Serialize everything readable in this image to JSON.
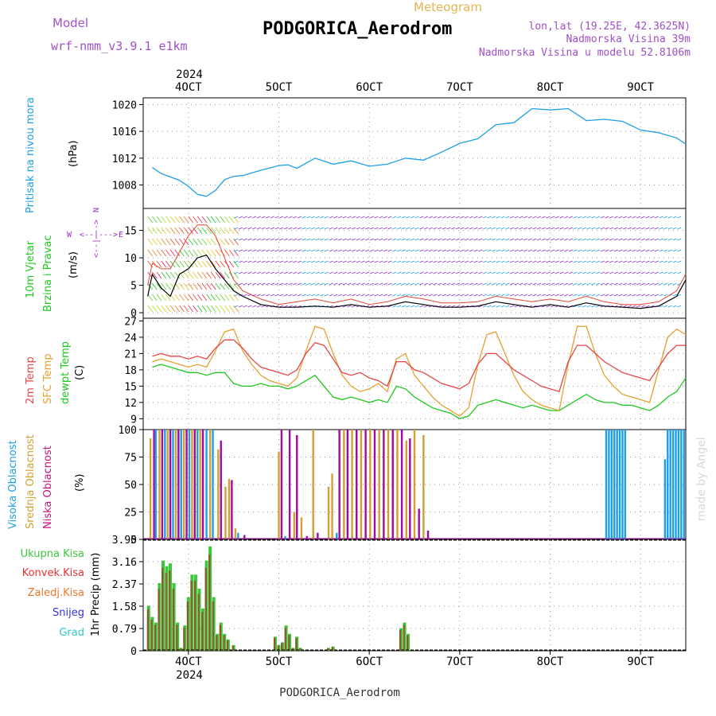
{
  "header": {
    "model_label": "Model",
    "model_name": "wrf-nmm_v3.9.1 e1km",
    "meteogram_label": "Meteogram",
    "station": "PODGORICA_Aerodrom",
    "coords": "lon,lat (19.25E, 42.3625N)",
    "altitude": "Nadmorska Visina 39m",
    "model_altitude": "Nadmorska Visina u modelu 52.8106m",
    "year": "2024",
    "footer_station": "PODGORICA_Aerodrom",
    "watermark": "made by Angel"
  },
  "colors": {
    "pressure": "#1ea0e6",
    "wind_speed": "#000000",
    "gust": "#e64632",
    "temp2m": "#e64646",
    "sfc_temp": "#e6a032",
    "dewpoint": "#1ec81e",
    "high_cloud": "#1ea0e6",
    "mid_cloud": "#d2a032",
    "low_cloud": "#a00aa0",
    "total_precip": "#3cc83c",
    "conv_precip": "#e63232",
    "snow": "#3232e6",
    "hail": "#32c8c8",
    "legend_wind": "#a032c8"
  },
  "chart_data": [
    {
      "type": "line",
      "title": "Pritisak na nivou mora",
      "ylabel": "(hPa)",
      "ylim": [
        1004.5,
        1021
      ],
      "yticks": [
        1008,
        1012,
        1016,
        1020
      ],
      "x_days": [
        3.6,
        3.7,
        3.8,
        3.9,
        4.0,
        4.1,
        4.2,
        4.3,
        4.4,
        4.5,
        4.6,
        4.8,
        5.0,
        5.1,
        5.2,
        5.4,
        5.6,
        5.8,
        6.0,
        6.2,
        6.4,
        6.6,
        6.8,
        7.0,
        7.2,
        7.4,
        7.6,
        7.8,
        8.0,
        8.2,
        8.4,
        8.6,
        8.8,
        9.0,
        9.2,
        9.4,
        9.5
      ],
      "series": [
        {
          "values": [
            1010.6,
            1009.7,
            1009.2,
            1008.7,
            1007.8,
            1006.6,
            1006.3,
            1007.2,
            1008.8,
            1009.3,
            1009.4,
            1010.2,
            1010.9,
            1011.0,
            1010.5,
            1012.0,
            1011.1,
            1011.6,
            1010.8,
            1011.1,
            1012.0,
            1011.7,
            1012.9,
            1014.2,
            1014.9,
            1017.0,
            1017.3,
            1019.4,
            1019.2,
            1019.4,
            1017.6,
            1017.8,
            1017.5,
            1016.2,
            1015.8,
            1015.0,
            1014.1
          ]
        }
      ]
    },
    {
      "type": "line",
      "title": "10m Vjetar Brzina i Pravac",
      "ylabel": "(m/s)",
      "ylim": [
        -1,
        19
      ],
      "yticks": [
        0,
        5,
        10,
        15
      ],
      "x_days": [
        3.55,
        3.6,
        3.7,
        3.8,
        3.9,
        4.0,
        4.1,
        4.2,
        4.3,
        4.4,
        4.5,
        4.6,
        4.8,
        5.0,
        5.2,
        5.4,
        5.6,
        5.8,
        6.0,
        6.2,
        6.4,
        6.6,
        6.8,
        7.0,
        7.2,
        7.4,
        7.6,
        7.8,
        8.0,
        8.2,
        8.4,
        8.6,
        8.8,
        9.0,
        9.2,
        9.4,
        9.5
      ],
      "series": [
        {
          "name": "speed",
          "values": [
            3.0,
            7.0,
            4.5,
            3.0,
            7.0,
            8.0,
            10.0,
            10.5,
            8.0,
            6.0,
            4.0,
            3.0,
            1.5,
            1.0,
            1.0,
            1.2,
            1.0,
            1.5,
            1.0,
            1.2,
            2.0,
            1.5,
            1.0,
            1.0,
            1.2,
            2.0,
            1.5,
            1.0,
            1.5,
            1.0,
            1.8,
            1.2,
            1.0,
            0.8,
            1.2,
            3.0,
            6.0
          ]
        },
        {
          "name": "gust",
          "values": [
            5.0,
            9.0,
            8.0,
            8.0,
            11.0,
            14.0,
            16.0,
            16.0,
            14.0,
            10.0,
            6.0,
            4.0,
            2.5,
            1.5,
            2.0,
            2.5,
            1.8,
            2.5,
            1.5,
            2.0,
            3.0,
            2.5,
            1.8,
            1.8,
            2.0,
            3.0,
            2.5,
            2.0,
            2.5,
            2.0,
            3.0,
            2.0,
            1.5,
            1.5,
            2.0,
            4.0,
            7.0
          ]
        }
      ]
    },
    {
      "type": "line",
      "ylabel": "(C)",
      "ylim": [
        7,
        27.5
      ],
      "yticks": [
        9,
        12,
        15,
        18,
        21,
        24,
        27
      ],
      "series_names": [
        "2m Temp",
        "SFC Temp",
        "dewpt Temp"
      ],
      "x_days": [
        3.6,
        3.7,
        3.8,
        3.9,
        4.0,
        4.1,
        4.2,
        4.3,
        4.4,
        4.5,
        4.6,
        4.7,
        4.8,
        4.9,
        5.0,
        5.1,
        5.2,
        5.3,
        5.4,
        5.5,
        5.6,
        5.7,
        5.8,
        5.9,
        6.0,
        6.1,
        6.2,
        6.3,
        6.4,
        6.5,
        6.6,
        6.7,
        6.8,
        6.9,
        7.0,
        7.1,
        7.2,
        7.3,
        7.4,
        7.5,
        7.6,
        7.7,
        7.8,
        7.9,
        8.0,
        8.1,
        8.2,
        8.3,
        8.4,
        8.5,
        8.6,
        8.7,
        8.8,
        8.9,
        9.0,
        9.1,
        9.2,
        9.3,
        9.4,
        9.5
      ],
      "series": [
        {
          "name": "2m Temp",
          "values": [
            20.5,
            21.0,
            20.5,
            20.5,
            20.0,
            20.5,
            20.0,
            22.0,
            23.5,
            23.5,
            22.0,
            20.0,
            18.5,
            18.0,
            17.5,
            17.0,
            18.0,
            21.0,
            23.0,
            22.5,
            20.0,
            17.5,
            17.0,
            17.5,
            16.5,
            16.0,
            15.0,
            19.5,
            19.5,
            18.0,
            17.5,
            16.5,
            15.5,
            15.0,
            14.5,
            15.5,
            19.0,
            21.0,
            21.0,
            19.5,
            18.0,
            17.0,
            16.0,
            15.0,
            14.5,
            14.0,
            19.5,
            22.5,
            22.5,
            21.0,
            19.5,
            18.5,
            17.5,
            17.0,
            16.5,
            16.0,
            18.5,
            21.0,
            22.5,
            22.5
          ]
        },
        {
          "name": "SFC Temp",
          "values": [
            19.5,
            20.0,
            19.5,
            19.0,
            18.5,
            19.0,
            18.5,
            21.5,
            25.0,
            25.5,
            21.5,
            19.0,
            17.0,
            16.0,
            15.5,
            15.0,
            16.5,
            21.5,
            26.0,
            25.5,
            21.0,
            17.0,
            15.0,
            14.0,
            14.5,
            15.5,
            14.0,
            20.0,
            21.0,
            17.0,
            15.0,
            13.0,
            11.5,
            10.5,
            9.5,
            11.0,
            19.0,
            24.5,
            25.0,
            21.0,
            17.0,
            14.0,
            12.5,
            11.5,
            11.0,
            10.5,
            19.0,
            26.0,
            26.0,
            21.0,
            17.0,
            15.0,
            13.5,
            13.0,
            12.5,
            12.0,
            18.0,
            24.0,
            25.5,
            24.5
          ]
        },
        {
          "name": "dewpt Temp",
          "values": [
            18.5,
            19.0,
            18.5,
            18.0,
            17.5,
            17.5,
            17.0,
            17.5,
            17.5,
            15.5,
            15.0,
            15.0,
            15.5,
            15.0,
            15.0,
            14.5,
            15.0,
            16.0,
            17.0,
            15.0,
            13.0,
            12.5,
            13.0,
            12.5,
            12.0,
            12.5,
            12.0,
            15.0,
            14.5,
            13.0,
            12.0,
            11.0,
            10.5,
            10.0,
            9.0,
            9.5,
            11.5,
            12.0,
            12.5,
            12.0,
            11.5,
            11.0,
            11.5,
            11.0,
            10.5,
            10.5,
            11.5,
            12.5,
            13.5,
            12.5,
            12.0,
            12.0,
            11.5,
            11.5,
            11.0,
            10.5,
            11.5,
            13.0,
            14.0,
            16.5
          ]
        }
      ]
    },
    {
      "type": "bar",
      "ylabel": "(%)",
      "ylim": [
        0,
        100
      ],
      "yticks": [
        0,
        25,
        50,
        75,
        100
      ],
      "series_names": [
        "Visoka Oblacnost",
        "Srednja Oblacnost",
        "Niska Oblacnost"
      ],
      "bars": [
        {
          "x": 3.58,
          "s": 1,
          "v": 92
        },
        {
          "x": 3.62,
          "s": 2,
          "v": 100
        },
        {
          "x": 3.64,
          "s": 0,
          "v": 100
        },
        {
          "x": 3.68,
          "s": 1,
          "v": 100
        },
        {
          "x": 3.71,
          "s": 2,
          "v": 100
        },
        {
          "x": 3.74,
          "s": 0,
          "v": 100
        },
        {
          "x": 3.77,
          "s": 1,
          "v": 100
        },
        {
          "x": 3.8,
          "s": 2,
          "v": 100
        },
        {
          "x": 3.83,
          "s": 0,
          "v": 100
        },
        {
          "x": 3.86,
          "s": 1,
          "v": 100
        },
        {
          "x": 3.89,
          "s": 2,
          "v": 100
        },
        {
          "x": 3.92,
          "s": 0,
          "v": 100
        },
        {
          "x": 3.95,
          "s": 1,
          "v": 100
        },
        {
          "x": 3.98,
          "s": 2,
          "v": 100
        },
        {
          "x": 4.01,
          "s": 0,
          "v": 100
        },
        {
          "x": 4.04,
          "s": 1,
          "v": 100
        },
        {
          "x": 4.07,
          "s": 2,
          "v": 100
        },
        {
          "x": 4.1,
          "s": 0,
          "v": 100
        },
        {
          "x": 4.13,
          "s": 1,
          "v": 100
        },
        {
          "x": 4.16,
          "s": 2,
          "v": 100
        },
        {
          "x": 4.2,
          "s": 0,
          "v": 100
        },
        {
          "x": 4.24,
          "s": 1,
          "v": 100
        },
        {
          "x": 4.27,
          "s": 0,
          "v": 100
        },
        {
          "x": 4.33,
          "s": 1,
          "v": 82
        },
        {
          "x": 4.36,
          "s": 2,
          "v": 90
        },
        {
          "x": 4.41,
          "s": 1,
          "v": 48
        },
        {
          "x": 4.45,
          "s": 1,
          "v": 55
        },
        {
          "x": 4.48,
          "s": 2,
          "v": 54
        },
        {
          "x": 4.52,
          "s": 1,
          "v": 10
        },
        {
          "x": 4.55,
          "s": 0,
          "v": 6
        },
        {
          "x": 4.62,
          "s": 2,
          "v": 4
        },
        {
          "x": 5.0,
          "s": 1,
          "v": 80
        },
        {
          "x": 5.03,
          "s": 2,
          "v": 100
        },
        {
          "x": 5.07,
          "s": 0,
          "v": 3
        },
        {
          "x": 5.12,
          "s": 2,
          "v": 100
        },
        {
          "x": 5.17,
          "s": 1,
          "v": 25
        },
        {
          "x": 5.2,
          "s": 2,
          "v": 95
        },
        {
          "x": 5.25,
          "s": 1,
          "v": 20
        },
        {
          "x": 5.31,
          "s": 2,
          "v": 3
        },
        {
          "x": 5.38,
          "s": 1,
          "v": 100
        },
        {
          "x": 5.43,
          "s": 2,
          "v": 6
        },
        {
          "x": 5.55,
          "s": 1,
          "v": 48
        },
        {
          "x": 5.59,
          "s": 1,
          "v": 60
        },
        {
          "x": 5.64,
          "s": 0,
          "v": 6
        },
        {
          "x": 5.67,
          "s": 2,
          "v": 100
        },
        {
          "x": 5.72,
          "s": 1,
          "v": 100
        },
        {
          "x": 5.76,
          "s": 2,
          "v": 100
        },
        {
          "x": 5.81,
          "s": 1,
          "v": 100
        },
        {
          "x": 5.86,
          "s": 2,
          "v": 100
        },
        {
          "x": 5.91,
          "s": 1,
          "v": 100
        },
        {
          "x": 5.96,
          "s": 2,
          "v": 100
        },
        {
          "x": 6.01,
          "s": 1,
          "v": 100
        },
        {
          "x": 6.06,
          "s": 2,
          "v": 100
        },
        {
          "x": 6.11,
          "s": 1,
          "v": 100
        },
        {
          "x": 6.16,
          "s": 2,
          "v": 100
        },
        {
          "x": 6.21,
          "s": 1,
          "v": 100
        },
        {
          "x": 6.26,
          "s": 2,
          "v": 100
        },
        {
          "x": 6.31,
          "s": 1,
          "v": 100
        },
        {
          "x": 6.36,
          "s": 2,
          "v": 100
        },
        {
          "x": 6.41,
          "s": 1,
          "v": 90
        },
        {
          "x": 6.45,
          "s": 2,
          "v": 92
        },
        {
          "x": 6.5,
          "s": 1,
          "v": 100
        },
        {
          "x": 6.55,
          "s": 2,
          "v": 28
        },
        {
          "x": 6.6,
          "s": 1,
          "v": 95
        },
        {
          "x": 6.65,
          "s": 2,
          "v": 8
        },
        {
          "x": 8.62,
          "s": 0,
          "v": 100
        },
        {
          "x": 8.65,
          "s": 0,
          "v": 100
        },
        {
          "x": 8.68,
          "s": 0,
          "v": 100
        },
        {
          "x": 8.71,
          "s": 0,
          "v": 100
        },
        {
          "x": 8.74,
          "s": 0,
          "v": 100
        },
        {
          "x": 8.77,
          "s": 0,
          "v": 100
        },
        {
          "x": 8.8,
          "s": 0,
          "v": 100
        },
        {
          "x": 8.83,
          "s": 0,
          "v": 100
        },
        {
          "x": 9.27,
          "s": 0,
          "v": 73
        },
        {
          "x": 9.3,
          "s": 0,
          "v": 100
        },
        {
          "x": 9.33,
          "s": 0,
          "v": 100
        },
        {
          "x": 9.36,
          "s": 0,
          "v": 100
        },
        {
          "x": 9.39,
          "s": 0,
          "v": 100
        },
        {
          "x": 9.42,
          "s": 0,
          "v": 100
        },
        {
          "x": 9.45,
          "s": 0,
          "v": 100
        },
        {
          "x": 9.48,
          "s": 0,
          "v": 100
        }
      ]
    },
    {
      "type": "bar",
      "ylabel": "1hr Precip (mm)",
      "ylim": [
        0,
        3.95
      ],
      "yticks": [
        0,
        0.79,
        1.58,
        2.37,
        3.16,
        3.95
      ],
      "series_names": [
        "Ukupna Kisa",
        "Konvek.Kisa",
        "Zaledj.Kisa",
        "Snijeg",
        "Grad"
      ],
      "bars": [
        {
          "x": 3.56,
          "v": 1.6
        },
        {
          "x": 3.6,
          "v": 1.2
        },
        {
          "x": 3.64,
          "v": 1.0
        },
        {
          "x": 3.68,
          "v": 2.4
        },
        {
          "x": 3.72,
          "v": 3.2
        },
        {
          "x": 3.76,
          "v": 3.0
        },
        {
          "x": 3.8,
          "v": 3.1
        },
        {
          "x": 3.84,
          "v": 2.4
        },
        {
          "x": 3.88,
          "v": 1.0
        },
        {
          "x": 3.92,
          "v": 0.1
        },
        {
          "x": 3.96,
          "v": 0.9
        },
        {
          "x": 4.0,
          "v": 1.9
        },
        {
          "x": 4.04,
          "v": 2.7
        },
        {
          "x": 4.08,
          "v": 2.7
        },
        {
          "x": 4.12,
          "v": 2.2
        },
        {
          "x": 4.16,
          "v": 1.5
        },
        {
          "x": 4.2,
          "v": 3.2
        },
        {
          "x": 4.24,
          "v": 3.7
        },
        {
          "x": 4.28,
          "v": 1.9
        },
        {
          "x": 4.32,
          "v": 0.6
        },
        {
          "x": 4.36,
          "v": 1.0
        },
        {
          "x": 4.4,
          "v": 0.6
        },
        {
          "x": 4.44,
          "v": 0.4
        },
        {
          "x": 4.5,
          "v": 0.2
        },
        {
          "x": 4.96,
          "v": 0.5
        },
        {
          "x": 5.0,
          "v": 0.2
        },
        {
          "x": 5.04,
          "v": 0.3
        },
        {
          "x": 5.08,
          "v": 0.9
        },
        {
          "x": 5.12,
          "v": 0.6
        },
        {
          "x": 5.16,
          "v": 0.1
        },
        {
          "x": 5.2,
          "v": 0.5
        },
        {
          "x": 5.24,
          "v": 0.1
        },
        {
          "x": 5.55,
          "v": 0.1
        },
        {
          "x": 5.6,
          "v": 0.15
        },
        {
          "x": 6.35,
          "v": 0.8
        },
        {
          "x": 6.39,
          "v": 1.0
        },
        {
          "x": 6.43,
          "v": 0.6
        }
      ]
    }
  ],
  "xaxis": {
    "ticks": [
      {
        "day": 4,
        "label": "4OCT"
      },
      {
        "day": 5,
        "label": "5OCT"
      },
      {
        "day": 6,
        "label": "6OCT"
      },
      {
        "day": 7,
        "label": "7OCT"
      },
      {
        "day": 8,
        "label": "8OCT"
      },
      {
        "day": 9,
        "label": "9OCT"
      }
    ],
    "range": [
      3.5,
      9.5
    ]
  },
  "wind_legend": {
    "letters": [
      "N",
      "S",
      "W",
      "E"
    ],
    "arrows": [
      "<--|--->",
      "<--|--->"
    ]
  }
}
